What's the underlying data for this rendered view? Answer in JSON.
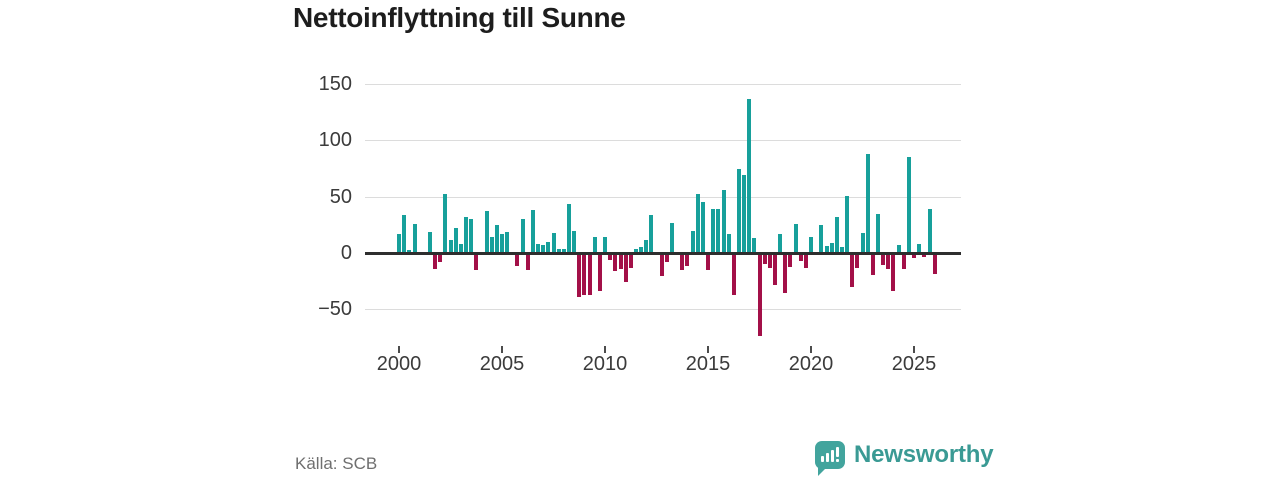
{
  "title": "Nettoinflyttning till Sunne",
  "source": {
    "label": "Källa: SCB"
  },
  "branding": {
    "name": "Newsworthy"
  },
  "colors": {
    "positive": "#17a09b",
    "negative": "#a31048",
    "gridline": "#dcdcdc",
    "zero_line": "#2e2e2e",
    "axis_text": "#3b3b3b",
    "title_text": "#1d1d1d",
    "source_text": "#6f6f6f",
    "brand_teal": "#3a9a94"
  },
  "chart_data": {
    "type": "bar",
    "title": "Nettoinflyttning till Sunne",
    "xlabel": "",
    "ylabel": "",
    "frequency": "quarterly",
    "start_year": 2000,
    "start_quarter": 1,
    "values": [
      17,
      34,
      3,
      26,
      0,
      0,
      19,
      -13,
      -7,
      52,
      12,
      22,
      8,
      32,
      30,
      -14,
      0,
      37,
      14,
      25,
      17,
      19,
      0,
      -10,
      30,
      -14,
      38,
      8,
      7,
      10,
      18,
      4,
      4,
      44,
      20,
      -38,
      -36,
      -36,
      14,
      -32,
      14,
      -5,
      -15,
      -13,
      -24,
      -12,
      4,
      5,
      12,
      34,
      0,
      -19,
      -7,
      27,
      0,
      -14,
      -10,
      20,
      52,
      45,
      -14,
      39,
      39,
      56,
      17,
      -36,
      75,
      69,
      137,
      13,
      -72,
      -8,
      -12,
      -27,
      17,
      -34,
      -11,
      26,
      -6,
      -12,
      14,
      0,
      25,
      6,
      9,
      32,
      5,
      51,
      -29,
      -12,
      18,
      88,
      -18,
      35,
      -9,
      -13,
      -32,
      7,
      -13,
      85,
      -3,
      8,
      -2,
      39,
      -17
    ],
    "yticks": [
      150,
      100,
      50,
      0,
      -50
    ],
    "ylim": [
      -72,
      150
    ],
    "xticks": [
      "2000",
      "2005",
      "2010",
      "2015",
      "2020",
      "2025"
    ],
    "xtick_quarter_indices": [
      0,
      20,
      40,
      60,
      80,
      100
    ],
    "grid": "horizontal",
    "legend": "none",
    "positive_color": "#17a09b",
    "negative_color": "#a31048"
  }
}
